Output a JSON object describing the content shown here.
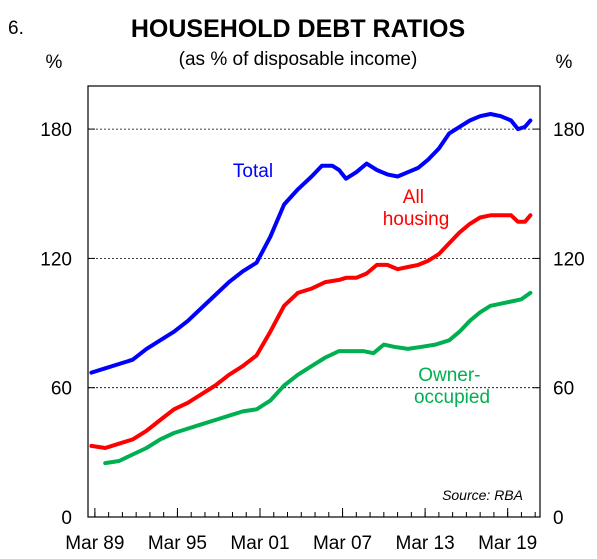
{
  "figure_number": "6.",
  "chart_data": {
    "type": "line",
    "title": "HOUSEHOLD DEBT RATIOS",
    "subtitle": "(as % of disposable income)",
    "ylabel_left": "%",
    "ylabel_right": "%",
    "source": "Source: RBA",
    "ylim": [
      0,
      200
    ],
    "yticks": [
      0,
      60,
      120,
      180
    ],
    "xlim": [
      1988.75,
      2021.6
    ],
    "xticks": [
      {
        "label": "Mar 89",
        "value": 1989.25
      },
      {
        "label": "Mar 95",
        "value": 1995.25
      },
      {
        "label": "Mar 01",
        "value": 2001.25
      },
      {
        "label": "Mar 07",
        "value": 2007.25
      },
      {
        "label": "Mar 13",
        "value": 2013.25
      },
      {
        "label": "Mar 19",
        "value": 2019.25
      }
    ],
    "gridlines": [
      60,
      120,
      180
    ],
    "series": [
      {
        "name": "Total",
        "color": "#0000ff",
        "x": [
          1989.0,
          1990.0,
          1991.0,
          1992.0,
          1993.0,
          1994.0,
          1995.0,
          1996.0,
          1997.0,
          1998.0,
          1999.0,
          2000.0,
          2001.0,
          2002.0,
          2003.0,
          2004.0,
          2005.0,
          2005.75,
          2006.5,
          2007.0,
          2007.5,
          2008.25,
          2009.0,
          2009.75,
          2010.5,
          2011.25,
          2012.0,
          2012.75,
          2013.5,
          2014.25,
          2015.0,
          2015.75,
          2016.5,
          2017.25,
          2018.0,
          2018.75,
          2019.5,
          2020.0,
          2020.5,
          2020.9
        ],
        "values": [
          67,
          69,
          71,
          73,
          78,
          82,
          86,
          91,
          97,
          103,
          109,
          114,
          118,
          130,
          145,
          152,
          158,
          163,
          163,
          161,
          157,
          160,
          164,
          161,
          159,
          158,
          160,
          162,
          166,
          171,
          178,
          181,
          184,
          186,
          187,
          186,
          184,
          180,
          181,
          184
        ]
      },
      {
        "name": "All housing",
        "color": "#ff0000",
        "x": [
          1989.0,
          1990.0,
          1991.0,
          1992.0,
          1993.0,
          1994.0,
          1995.0,
          1996.0,
          1997.0,
          1998.0,
          1999.0,
          2000.0,
          2001.0,
          2002.0,
          2003.0,
          2004.0,
          2005.0,
          2006.0,
          2007.0,
          2007.5,
          2008.25,
          2009.0,
          2009.75,
          2010.5,
          2011.25,
          2012.0,
          2012.75,
          2013.5,
          2014.25,
          2015.0,
          2015.75,
          2016.5,
          2017.25,
          2018.0,
          2018.75,
          2019.5,
          2020.0,
          2020.5,
          2020.9
        ],
        "values": [
          33,
          32,
          34,
          36,
          40,
          45,
          50,
          53,
          57,
          61,
          66,
          70,
          75,
          86,
          98,
          104,
          106,
          109,
          110,
          111,
          111,
          113,
          117,
          117,
          115,
          116,
          117,
          119,
          122,
          127,
          132,
          136,
          139,
          140,
          140,
          140,
          137,
          137,
          140
        ]
      },
      {
        "name": "Owner-occupied",
        "color": "#00b050",
        "x": [
          1990.0,
          1991.0,
          1992.0,
          1993.0,
          1994.0,
          1995.0,
          1996.0,
          1997.0,
          1998.0,
          1999.0,
          2000.0,
          2001.0,
          2002.0,
          2003.0,
          2004.0,
          2005.0,
          2006.0,
          2007.0,
          2008.0,
          2008.75,
          2009.5,
          2010.25,
          2011.0,
          2012.0,
          2013.0,
          2014.0,
          2015.0,
          2015.75,
          2016.5,
          2017.25,
          2018.0,
          2018.75,
          2019.5,
          2020.25,
          2020.9
        ],
        "values": [
          25,
          26,
          29,
          32,
          36,
          39,
          41,
          43,
          45,
          47,
          49,
          50,
          54,
          61,
          66,
          70,
          74,
          77,
          77,
          77,
          76,
          80,
          79,
          78,
          79,
          80,
          82,
          86,
          91,
          95,
          98,
          99,
          100,
          101,
          104
        ]
      }
    ],
    "annotations": [
      {
        "series": "Total",
        "lines": [
          "Total"
        ]
      },
      {
        "series": "All housing",
        "lines": [
          "All",
          "housing"
        ]
      },
      {
        "series": "Owner-occupied",
        "lines": [
          "Owner-",
          "occupied"
        ]
      }
    ]
  }
}
